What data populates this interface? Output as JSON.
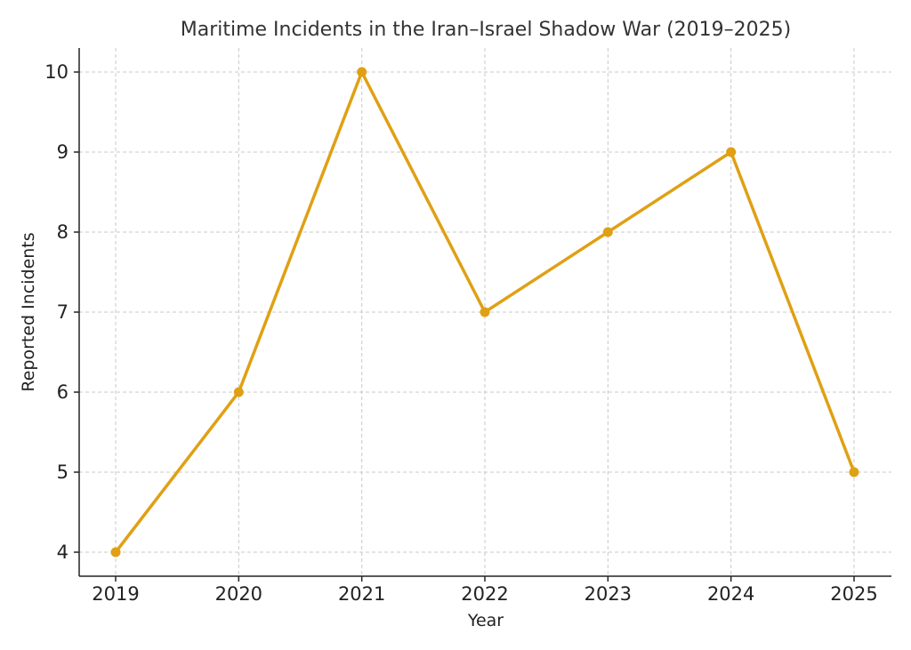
{
  "chart_data": {
    "type": "line",
    "title": "Maritime Incidents in the Iran–Israel Shadow War (2019–2025)",
    "xlabel": "Year",
    "ylabel": "Reported Incidents",
    "categories": [
      "2019",
      "2020",
      "2021",
      "2022",
      "2023",
      "2024",
      "2025"
    ],
    "series": [
      {
        "name": "Reported Incidents",
        "values": [
          4,
          6,
          10,
          7,
          8,
          9,
          5
        ],
        "color": "#e0a014"
      }
    ],
    "y_ticks": [
      4,
      5,
      6,
      7,
      8,
      9,
      10
    ],
    "ylim": [
      3.7,
      10.3
    ],
    "grid": true,
    "marker": "circle"
  }
}
